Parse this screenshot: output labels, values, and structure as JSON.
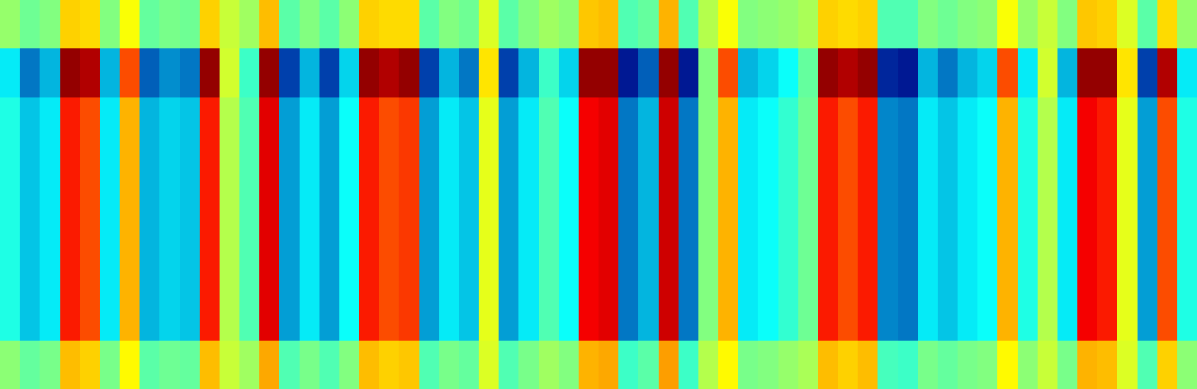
{
  "chart_data": {
    "type": "heatmap",
    "color": "Jet",
    "zlim": [
      0,
      1
    ],
    "tick_labels": false,
    "cells": [
      [
        0.52,
        0.48,
        0.5,
        0.67,
        0.66,
        0.5,
        0.62,
        0.47,
        0.49,
        0.48,
        0.67,
        0.57,
        0.53,
        0.69,
        0.46,
        0.5,
        0.46,
        0.51,
        0.67,
        0.66,
        0.66,
        0.46,
        0.5,
        0.48,
        0.59,
        0.46,
        0.5,
        0.53,
        0.51,
        0.68,
        0.69,
        0.45,
        0.47,
        0.7,
        0.45,
        0.55,
        0.62,
        0.5,
        0.51,
        0.52,
        0.54,
        0.67,
        0.66,
        0.67,
        0.45,
        0.45,
        0.5,
        0.48,
        0.5,
        0.51,
        0.62,
        0.52,
        0.57,
        0.5,
        0.68,
        0.67,
        0.59,
        0.46,
        0.66,
        0.52
      ],
      [
        0.35,
        0.2,
        0.28,
        0.98,
        0.95,
        0.28,
        0.8,
        0.17,
        0.23,
        0.2,
        0.98,
        0.58,
        0.43,
        0.98,
        0.13,
        0.28,
        0.13,
        0.32,
        0.98,
        0.95,
        0.98,
        0.13,
        0.28,
        0.2,
        0.65,
        0.13,
        0.28,
        0.43,
        0.32,
        0.98,
        0.98,
        0.05,
        0.17,
        0.98,
        0.05,
        0.5,
        0.8,
        0.28,
        0.32,
        0.38,
        0.47,
        0.98,
        0.95,
        0.98,
        0.08,
        0.05,
        0.28,
        0.2,
        0.28,
        0.32,
        0.8,
        0.35,
        0.58,
        0.28,
        0.98,
        0.98,
        0.65,
        0.13,
        0.95,
        0.35
      ],
      [
        0.4,
        0.3,
        0.35,
        0.85,
        0.8,
        0.35,
        0.7,
        0.28,
        0.32,
        0.3,
        0.85,
        0.55,
        0.45,
        0.9,
        0.25,
        0.35,
        0.25,
        0.38,
        0.85,
        0.8,
        0.82,
        0.25,
        0.35,
        0.3,
        0.6,
        0.25,
        0.35,
        0.45,
        0.38,
        0.88,
        0.9,
        0.2,
        0.28,
        0.92,
        0.2,
        0.5,
        0.7,
        0.35,
        0.38,
        0.42,
        0.48,
        0.85,
        0.8,
        0.85,
        0.22,
        0.2,
        0.35,
        0.3,
        0.35,
        0.38,
        0.7,
        0.4,
        0.55,
        0.35,
        0.88,
        0.85,
        0.6,
        0.25,
        0.8,
        0.4
      ],
      [
        0.4,
        0.3,
        0.35,
        0.85,
        0.8,
        0.35,
        0.7,
        0.28,
        0.32,
        0.3,
        0.85,
        0.55,
        0.45,
        0.9,
        0.25,
        0.35,
        0.25,
        0.38,
        0.85,
        0.8,
        0.82,
        0.25,
        0.35,
        0.3,
        0.6,
        0.25,
        0.35,
        0.45,
        0.38,
        0.88,
        0.9,
        0.2,
        0.28,
        0.92,
        0.2,
        0.5,
        0.7,
        0.35,
        0.38,
        0.42,
        0.48,
        0.85,
        0.8,
        0.85,
        0.22,
        0.2,
        0.35,
        0.3,
        0.35,
        0.38,
        0.7,
        0.4,
        0.55,
        0.35,
        0.88,
        0.85,
        0.6,
        0.25,
        0.8,
        0.4
      ],
      [
        0.4,
        0.3,
        0.35,
        0.85,
        0.8,
        0.35,
        0.7,
        0.28,
        0.32,
        0.3,
        0.85,
        0.55,
        0.45,
        0.9,
        0.25,
        0.35,
        0.25,
        0.38,
        0.85,
        0.8,
        0.82,
        0.25,
        0.35,
        0.3,
        0.6,
        0.25,
        0.35,
        0.45,
        0.38,
        0.88,
        0.9,
        0.2,
        0.28,
        0.92,
        0.2,
        0.5,
        0.7,
        0.35,
        0.38,
        0.42,
        0.48,
        0.85,
        0.8,
        0.85,
        0.22,
        0.2,
        0.35,
        0.3,
        0.35,
        0.38,
        0.7,
        0.4,
        0.55,
        0.35,
        0.88,
        0.85,
        0.6,
        0.25,
        0.8,
        0.4
      ],
      [
        0.4,
        0.3,
        0.35,
        0.85,
        0.8,
        0.35,
        0.7,
        0.28,
        0.32,
        0.3,
        0.85,
        0.55,
        0.45,
        0.9,
        0.25,
        0.35,
        0.25,
        0.38,
        0.85,
        0.8,
        0.82,
        0.25,
        0.35,
        0.3,
        0.6,
        0.25,
        0.35,
        0.45,
        0.38,
        0.88,
        0.9,
        0.2,
        0.28,
        0.92,
        0.2,
        0.5,
        0.7,
        0.35,
        0.38,
        0.42,
        0.48,
        0.85,
        0.8,
        0.85,
        0.22,
        0.2,
        0.35,
        0.3,
        0.35,
        0.38,
        0.7,
        0.4,
        0.55,
        0.35,
        0.88,
        0.85,
        0.6,
        0.25,
        0.8,
        0.4
      ],
      [
        0.4,
        0.3,
        0.35,
        0.85,
        0.8,
        0.35,
        0.7,
        0.28,
        0.32,
        0.3,
        0.85,
        0.55,
        0.45,
        0.9,
        0.25,
        0.35,
        0.25,
        0.38,
        0.85,
        0.8,
        0.82,
        0.25,
        0.35,
        0.3,
        0.6,
        0.25,
        0.35,
        0.45,
        0.38,
        0.88,
        0.9,
        0.2,
        0.28,
        0.92,
        0.2,
        0.5,
        0.7,
        0.35,
        0.38,
        0.42,
        0.48,
        0.85,
        0.8,
        0.85,
        0.22,
        0.2,
        0.35,
        0.3,
        0.35,
        0.38,
        0.7,
        0.4,
        0.55,
        0.35,
        0.88,
        0.85,
        0.6,
        0.25,
        0.8,
        0.4
      ],
      [
        0.51,
        0.47,
        0.49,
        0.69,
        0.67,
        0.49,
        0.63,
        0.46,
        0.48,
        0.47,
        0.69,
        0.57,
        0.53,
        0.71,
        0.45,
        0.49,
        0.45,
        0.5,
        0.69,
        0.67,
        0.68,
        0.45,
        0.49,
        0.47,
        0.59,
        0.45,
        0.49,
        0.53,
        0.5,
        0.7,
        0.71,
        0.43,
        0.46,
        0.72,
        0.43,
        0.55,
        0.63,
        0.49,
        0.5,
        0.52,
        0.54,
        0.69,
        0.67,
        0.69,
        0.44,
        0.43,
        0.49,
        0.47,
        0.49,
        0.5,
        0.63,
        0.51,
        0.57,
        0.49,
        0.7,
        0.69,
        0.59,
        0.45,
        0.67,
        0.51
      ]
    ]
  }
}
